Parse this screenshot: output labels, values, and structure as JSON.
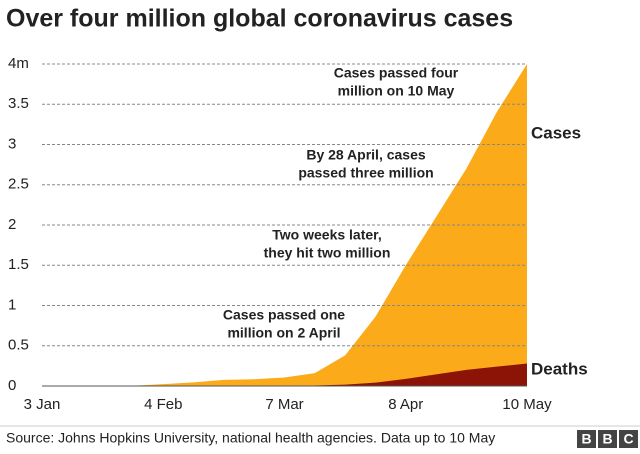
{
  "chart_data": {
    "type": "area",
    "title": "Over four million global coronavirus cases",
    "categories": [
      "3 Jan",
      null,
      null,
      null,
      "4 Feb",
      null,
      null,
      null,
      "7 Mar",
      null,
      null,
      null,
      "8 Apr",
      null,
      null,
      null,
      "10 May"
    ],
    "series": [
      {
        "name": "Cases",
        "color": "#fbaa19",
        "values": [
          0,
          0,
          0.0003,
          0.003,
          0.024,
          0.045,
          0.076,
          0.084,
          0.106,
          0.16,
          0.38,
          0.86,
          1.5,
          2.1,
          2.7,
          3.4,
          4.0
        ]
      },
      {
        "name": "Deaths",
        "color": "#8c1407",
        "values": [
          0,
          0,
          0,
          0,
          0.0005,
          0.001,
          0.002,
          0.0029,
          0.0035,
          0.006,
          0.017,
          0.042,
          0.088,
          0.145,
          0.2,
          0.24,
          0.28
        ]
      }
    ],
    "ylim": [
      0,
      4
    ],
    "yticks": [
      0,
      0.5,
      1,
      1.5,
      2,
      2.5,
      3,
      3.5,
      {
        "value": 4,
        "label": "4m"
      }
    ],
    "grid": true,
    "annotations": [
      [
        "Cases passed four",
        "million on 10 May"
      ],
      [
        "By 28 April, cases",
        "passed three million"
      ],
      [
        "Two weeks later,",
        "they hit two million"
      ],
      [
        "Cases passed one",
        "million on 2 April"
      ]
    ],
    "source": "Source: Johns Hopkins University, national health agencies. Data up to 10 May",
    "logo": [
      "B",
      "B",
      "C"
    ]
  }
}
